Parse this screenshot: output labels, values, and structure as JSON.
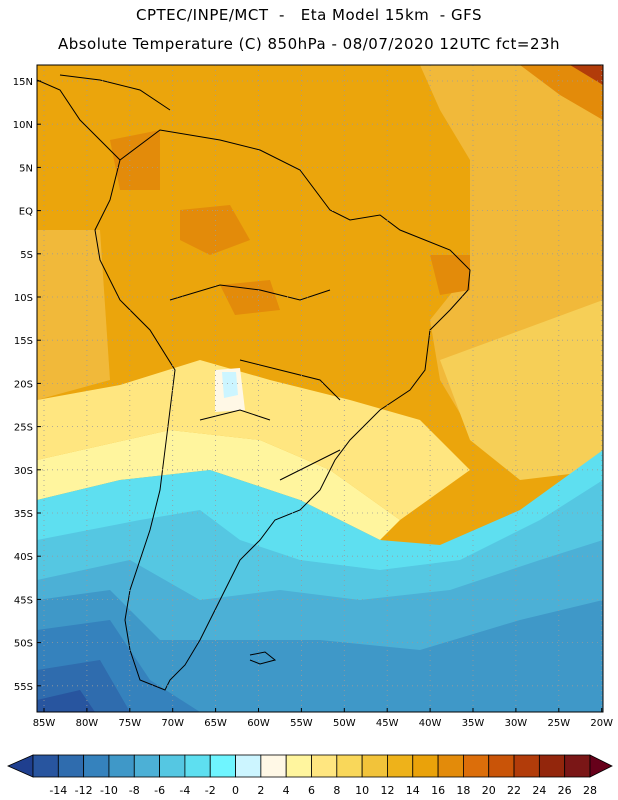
{
  "header": {
    "line1": "CPTEC/INPE/MCT  -   Eta Model 15km  - GFS",
    "line2": "Absolute Temperature (C) 850hPa - 08/07/2020 12UTC fct=23h"
  },
  "map": {
    "lat_labels": [
      "15N",
      "10N",
      "5N",
      "EQ",
      "5S",
      "10S",
      "15S",
      "20S",
      "25S",
      "30S",
      "35S",
      "40S",
      "45S",
      "50S",
      "55S"
    ],
    "lon_labels": [
      "85W",
      "80W",
      "75W",
      "70W",
      "65W",
      "60W",
      "55W",
      "50W",
      "45W",
      "40W",
      "35W",
      "30W",
      "25W",
      "20W"
    ]
  },
  "colorbar": {
    "labels": [
      "-14",
      "-12",
      "-10",
      "-8",
      "-6",
      "-4",
      "-2",
      "0",
      "2",
      "4",
      "6",
      "8",
      "10",
      "12",
      "14",
      "16",
      "18",
      "20",
      "22",
      "24",
      "26",
      "28"
    ],
    "colors": [
      "#1f3f8f",
      "#28559f",
      "#2f6cae",
      "#3582bd",
      "#3f98c8",
      "#4cb0d6",
      "#55c7e2",
      "#5edff0",
      "#6ff5ff",
      "#ccf5ff",
      "#fff8e6",
      "#fff59e",
      "#ffe680",
      "#f9d75a",
      "#f2c33a",
      "#eeb21a",
      "#eaa20a",
      "#e38b0a",
      "#dc6e0a",
      "#c95408",
      "#b23c0a",
      "#93260c",
      "#7a1616",
      "#66001a"
    ]
  }
}
